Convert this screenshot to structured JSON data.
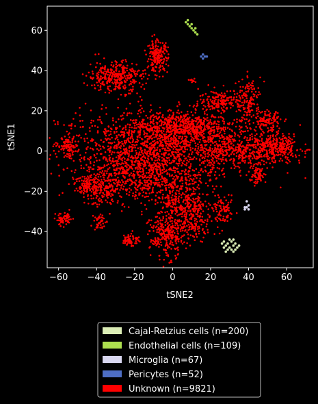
{
  "chart_data": {
    "type": "scatter",
    "xlabel": "tSNE2",
    "ylabel": "tSNE1",
    "xlim": [
      -66,
      74
    ],
    "ylim": [
      -58,
      72
    ],
    "xticks": [
      -60,
      -40,
      -20,
      0,
      20,
      40,
      60
    ],
    "yticks": [
      -40,
      -20,
      0,
      20,
      40,
      60
    ],
    "grid": false,
    "legend_position": "below",
    "background": "#000000",
    "series": [
      {
        "name": "Cajal-Retzius cells (n=200)",
        "color": "#dcedb6",
        "points": [
          [
            27,
            -45
          ],
          [
            28,
            -47
          ],
          [
            29,
            -46
          ],
          [
            30,
            -48
          ],
          [
            31,
            -45
          ],
          [
            32,
            -47
          ],
          [
            33,
            -46
          ],
          [
            34,
            -48
          ],
          [
            29,
            -49
          ],
          [
            31,
            -49
          ],
          [
            33,
            -49
          ],
          [
            27,
            -48
          ],
          [
            30,
            -44
          ],
          [
            32,
            -44
          ],
          [
            26,
            -46
          ],
          [
            35,
            -47
          ],
          [
            28,
            -50
          ],
          [
            32,
            -50
          ]
        ]
      },
      {
        "name": "Endothelial cells (n=109)",
        "color": "#addf4f",
        "points": [
          [
            7,
            64
          ],
          [
            8,
            63
          ],
          [
            9,
            62
          ],
          [
            10,
            61
          ],
          [
            11,
            60
          ],
          [
            12,
            59
          ],
          [
            13,
            58
          ],
          [
            8,
            65
          ],
          [
            10,
            63
          ],
          [
            12,
            61
          ]
        ]
      },
      {
        "name": "Microglia (n=67)",
        "color": "#d9d7f0",
        "points": [
          [
            38,
            -29
          ],
          [
            39,
            -28
          ],
          [
            40,
            -27
          ],
          [
            39,
            -25
          ],
          [
            38,
            -28
          ],
          [
            40,
            -29
          ]
        ]
      },
      {
        "name": "Pericytes (n=52)",
        "color": "#4e6ec4",
        "points": [
          [
            15,
            47
          ],
          [
            16,
            46
          ],
          [
            17,
            47
          ],
          [
            18,
            47
          ],
          [
            16,
            48
          ]
        ]
      },
      {
        "name": "Unknown (n=9821)",
        "color": "#ff0000",
        "points": [],
        "regions": [
          {
            "cx": -5,
            "cy": 3,
            "rx": 50,
            "ry": 15,
            "n": 1500
          },
          {
            "cx": -18,
            "cy": -12,
            "rx": 26,
            "ry": 12,
            "n": 600
          },
          {
            "cx": 5,
            "cy": 13,
            "rx": 20,
            "ry": 6,
            "n": 400
          },
          {
            "cx": 35,
            "cy": 0,
            "rx": 20,
            "ry": 8,
            "n": 300
          },
          {
            "cx": 55,
            "cy": 2,
            "rx": 12,
            "ry": 6,
            "n": 250
          },
          {
            "cx": 5,
            "cy": -25,
            "rx": 14,
            "ry": 10,
            "n": 300
          },
          {
            "cx": -3,
            "cy": -42,
            "rx": 8,
            "ry": 10,
            "n": 280
          },
          {
            "cx": 12,
            "cy": -35,
            "rx": 8,
            "ry": 8,
            "n": 150
          },
          {
            "cx": -30,
            "cy": 37,
            "rx": 13,
            "ry": 7,
            "n": 350
          },
          {
            "cx": -8,
            "cy": 47,
            "rx": 5,
            "ry": 7,
            "n": 200
          },
          {
            "cx": 25,
            "cy": 25,
            "rx": 10,
            "ry": 5,
            "n": 150
          },
          {
            "cx": 40,
            "cy": 25,
            "rx": 6,
            "ry": 10,
            "n": 150
          },
          {
            "cx": 50,
            "cy": 15,
            "rx": 6,
            "ry": 4,
            "n": 100
          },
          {
            "cx": -55,
            "cy": 2,
            "rx": 4,
            "ry": 5,
            "n": 80
          },
          {
            "cx": -57,
            "cy": -34,
            "rx": 4,
            "ry": 3,
            "n": 60
          },
          {
            "cx": -37,
            "cy": -20,
            "rx": 8,
            "ry": 6,
            "n": 120
          },
          {
            "cx": -45,
            "cy": -17,
            "rx": 6,
            "ry": 4,
            "n": 80
          },
          {
            "cx": -22,
            "cy": -44,
            "rx": 4,
            "ry": 3,
            "n": 60
          },
          {
            "cx": 27,
            "cy": -30,
            "rx": 5,
            "ry": 6,
            "n": 80
          },
          {
            "cx": 45,
            "cy": -12,
            "rx": 4,
            "ry": 4,
            "n": 60
          },
          {
            "cx": -38,
            "cy": -35,
            "rx": 3,
            "ry": 4,
            "n": 40
          },
          {
            "cx": 10,
            "cy": 35,
            "rx": 2,
            "ry": 1,
            "n": 12
          }
        ]
      }
    ]
  },
  "legend": {
    "items": [
      {
        "label": "Cajal-Retzius cells (n=200)",
        "color": "#dcedb6"
      },
      {
        "label": "Endothelial cells (n=109)",
        "color": "#addf4f"
      },
      {
        "label": "Microglia (n=67)",
        "color": "#d9d7f0"
      },
      {
        "label": "Pericytes (n=52)",
        "color": "#4e6ec4"
      },
      {
        "label": "Unknown (n=9821)",
        "color": "#ff0000"
      }
    ]
  }
}
